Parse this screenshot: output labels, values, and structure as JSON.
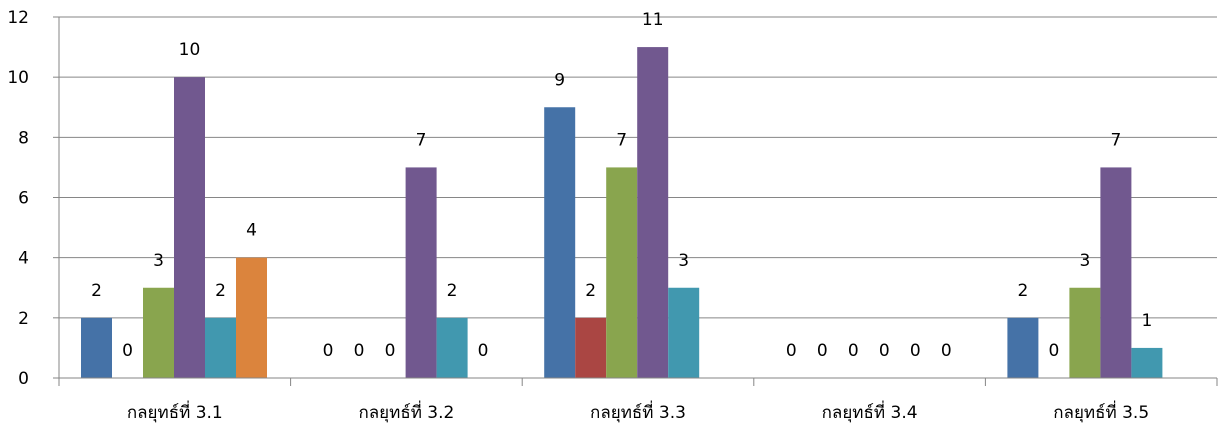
{
  "chart_data": {
    "type": "bar",
    "categories": [
      "กลยุทธ์ที่ 3.1",
      "กลยุทธ์ที่ 3.2",
      "กลยุทธ์ที่ 3.3",
      "กลยุทธ์ที่ 3.4",
      "กลยุทธ์ที่ 3.5"
    ],
    "series": [
      {
        "color": "#4572A7",
        "values": [
          2,
          0,
          9,
          0,
          2
        ]
      },
      {
        "color": "#AA4643",
        "values": [
          0,
          0,
          2,
          0,
          0
        ]
      },
      {
        "color": "#89A54E",
        "values": [
          3,
          0,
          7,
          0,
          3
        ]
      },
      {
        "color": "#71588F",
        "values": [
          10,
          7,
          11,
          0,
          7
        ]
      },
      {
        "color": "#4198AF",
        "values": [
          2,
          2,
          3,
          0,
          1
        ]
      },
      {
        "color": "#DB843D",
        "values": [
          4,
          0,
          0,
          0,
          0
        ]
      }
    ],
    "visible_series": [
      [
        0,
        1,
        2,
        3,
        4,
        5
      ],
      [
        0,
        1,
        2,
        3,
        4,
        5
      ],
      [
        0,
        1,
        2,
        3,
        4
      ],
      [
        0,
        1,
        2,
        3,
        4,
        5
      ],
      [
        0,
        1,
        2,
        3,
        4
      ]
    ],
    "yticks": [
      0,
      2,
      4,
      6,
      8,
      10,
      12
    ],
    "ylim": [
      0,
      12
    ],
    "title": "",
    "xlabel": "",
    "ylabel": "",
    "grid": true,
    "legend": "none",
    "data_labels": true
  }
}
